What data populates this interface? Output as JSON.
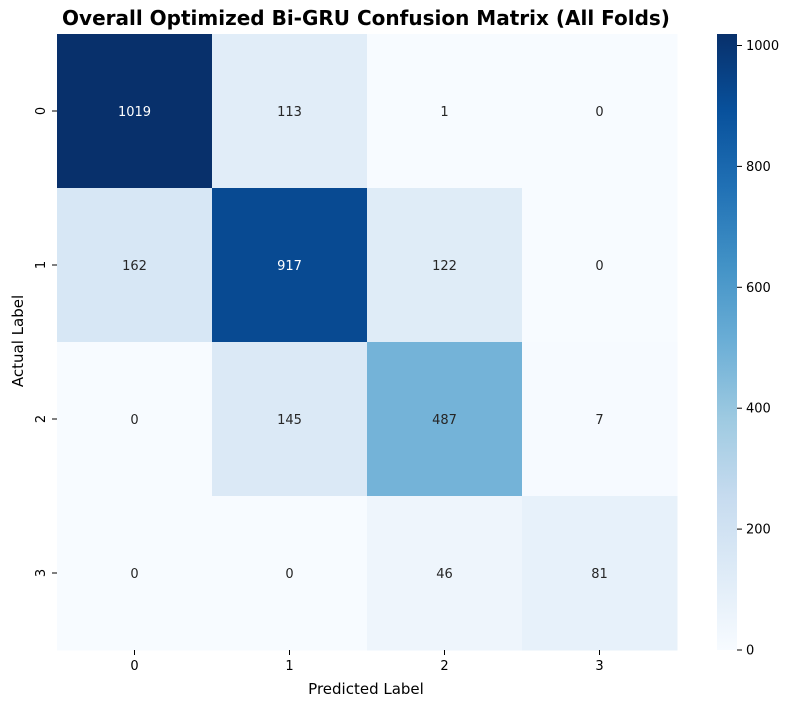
{
  "chart_data": {
    "type": "heatmap",
    "title": "Overall Optimized Bi-GRU Confusion Matrix (All Folds)",
    "xlabel": "Predicted Label",
    "ylabel": "Actual Label",
    "x_categories": [
      "0",
      "1",
      "2",
      "3"
    ],
    "y_categories": [
      "0",
      "1",
      "2",
      "3"
    ],
    "values": [
      [
        1019,
        113,
        1,
        0
      ],
      [
        162,
        917,
        122,
        0
      ],
      [
        0,
        145,
        487,
        7
      ],
      [
        0,
        0,
        46,
        81
      ]
    ],
    "colorbar": {
      "range": [
        0,
        1019
      ],
      "ticks": [
        0,
        200,
        400,
        600,
        800,
        1000
      ],
      "colormap": "Blues",
      "color_low": "#f7fbff",
      "color_high": "#08306b"
    },
    "grid": false,
    "legend": "right colorbar"
  }
}
